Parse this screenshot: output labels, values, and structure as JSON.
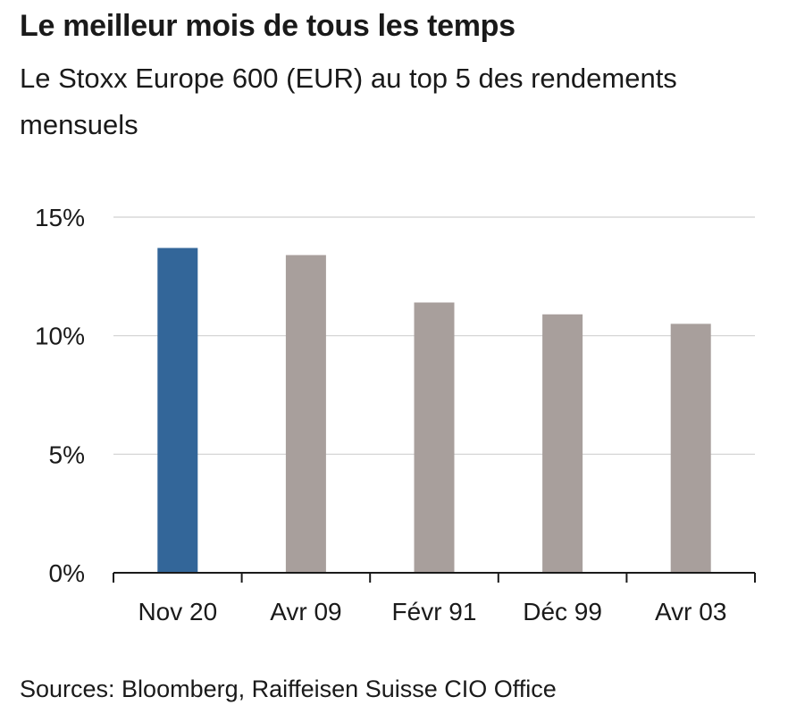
{
  "header": {
    "title": "Le meilleur mois de tous les temps",
    "subtitle": "Le Stoxx Europe 600 (EUR) au top 5 des rendements mensuels"
  },
  "footer": {
    "source": "Sources: Bloomberg, Raiffeisen Suisse CIO Office"
  },
  "colors": {
    "highlight": "#336699",
    "default": "#a89f9c",
    "grid": "#d0d0d0",
    "axis": "#1a1a1a"
  },
  "chart_data": {
    "type": "bar",
    "title": "Le meilleur mois de tous les temps",
    "subtitle": "Le Stoxx Europe 600 (EUR) au top 5 des rendements mensuels",
    "xlabel": "",
    "ylabel": "",
    "categories": [
      "Nov 20",
      "Avr 09",
      "Févr 91",
      "Déc 99",
      "Avr 03"
    ],
    "values": [
      13.7,
      13.4,
      11.4,
      10.9,
      10.5
    ],
    "highlighted_index": 0,
    "ylim": [
      0,
      15
    ],
    "yticks": [
      0,
      5,
      10,
      15
    ],
    "ytick_labels": [
      "0%",
      "5%",
      "10%",
      "15%"
    ],
    "grid": true,
    "legend": "none"
  }
}
